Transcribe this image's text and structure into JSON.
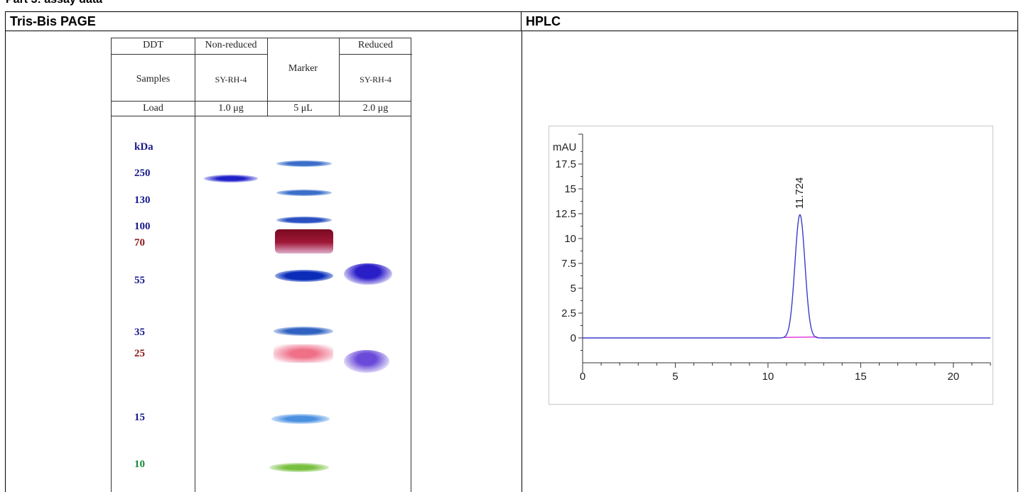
{
  "page": {
    "part_title": "Part 3: assay data"
  },
  "table": {
    "headers": [
      "Tris-Bis PAGE",
      "HPLC"
    ]
  },
  "gel": {
    "header_rows": {
      "ddt_label": "DDT",
      "non_reduced": "Non-reduced",
      "reduced": "Reduced",
      "marker": "Marker",
      "samples_label": "Samples",
      "sample_nr": "SY-RH-4",
      "sample_r": "SY-RH-4",
      "load_label": "Load",
      "load_nr": "1.0 μg",
      "load_marker": "5 μL",
      "load_r": "2.0 μg"
    },
    "kda_title": "kDa",
    "markers": [
      {
        "label": "250",
        "color": "#1a1a8c"
      },
      {
        "label": "130",
        "color": "#1a1a8c"
      },
      {
        "label": "100",
        "color": "#1a1a8c"
      },
      {
        "label": "70",
        "color": "#8b1a1a"
      },
      {
        "label": "55",
        "color": "#1a1a8c"
      },
      {
        "label": "35",
        "color": "#1a1a8c"
      },
      {
        "label": "25",
        "color": "#8b1a1a"
      },
      {
        "label": "15",
        "color": "#1a1a8c"
      },
      {
        "label": "10",
        "color": "#1a8c3a"
      }
    ]
  },
  "chart_data": {
    "type": "line",
    "title": "",
    "xlabel": "",
    "ylabel": "mAU",
    "xlim": [
      0,
      22
    ],
    "ylim": [
      -3.5,
      20.5
    ],
    "x_ticks": [
      0,
      5,
      10,
      15,
      20
    ],
    "y_ticks": [
      0,
      2.5,
      5,
      7.5,
      10,
      12.5,
      15,
      17.5
    ],
    "y_tick_labels": [
      "0",
      "2.5",
      "5",
      "7.5",
      "10",
      "12.5",
      "15",
      "17.5"
    ],
    "series": [
      {
        "color": "#3b3bcf",
        "peak": {
          "x": 11.724,
          "y": 12.4,
          "label": "11.724"
        },
        "baseline": 0.0
      }
    ],
    "baseline_color": "#e040e0",
    "grid": false
  }
}
